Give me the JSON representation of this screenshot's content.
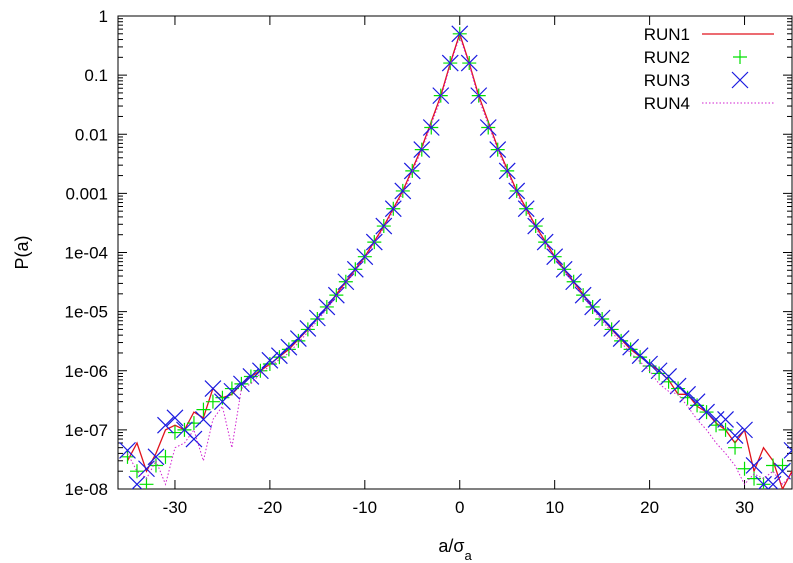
{
  "chart_data": {
    "type": "line",
    "xlabel": "a/σ",
    "xlabel_sub": "a",
    "ylabel": "P(a)",
    "xlim": [
      -36,
      35
    ],
    "ylim": [
      1e-08,
      1
    ],
    "y_scale": "log",
    "grid": false,
    "legend_position": "top-right",
    "x_ticks": [
      -30,
      -20,
      -10,
      0,
      10,
      20,
      30
    ],
    "x_tick_labels": [
      "-30",
      "-20",
      "-10",
      "0",
      "10",
      "20",
      "30"
    ],
    "y_ticks": [
      1e-08,
      1e-07,
      1e-06,
      1e-05,
      0.0001,
      0.001,
      0.01,
      0.1,
      1
    ],
    "y_tick_labels": [
      "1e-08",
      "1e-07",
      "1e-06",
      "1e-05",
      "1e-04",
      "0.001",
      "0.01",
      "0.1",
      "1"
    ],
    "series": [
      {
        "name": "RUN1",
        "style": "line",
        "color": "#e0131c",
        "x": [
          -35,
          -34,
          -33,
          -32,
          -31,
          -30,
          -29,
          -28,
          -27,
          -26,
          -25,
          -24,
          -23,
          -22,
          -21,
          -20,
          -18,
          -16,
          -14,
          -12,
          -10,
          -8,
          -6,
          -4,
          -2,
          -1,
          0,
          1,
          2,
          4,
          6,
          8,
          10,
          12,
          14,
          16,
          18,
          20,
          21,
          22,
          23,
          24,
          25,
          26,
          27,
          28,
          29,
          30,
          31,
          32,
          33,
          34,
          35
        ],
        "y": [
          3e-08,
          6e-08,
          2e-08,
          4e-08,
          1e-07,
          1.2e-07,
          1e-07,
          2e-07,
          1.6e-07,
          5e-07,
          3.5e-07,
          4e-07,
          6e-07,
          8e-07,
          1e-06,
          1.3e-06,
          2.3e-06,
          5e-06,
          1.2e-05,
          3.2e-05,
          8.5e-05,
          0.00028,
          0.0011,
          0.006,
          0.045,
          0.16,
          0.5,
          0.16,
          0.045,
          0.006,
          0.0011,
          0.00028,
          8.5e-05,
          3.2e-05,
          1.2e-05,
          5e-06,
          2.3e-06,
          1.3e-06,
          1e-06,
          7e-07,
          4e-07,
          4e-07,
          2.5e-07,
          2e-07,
          1.3e-07,
          1e-07,
          6e-08,
          1e-07,
          2e-08,
          5e-08,
          3e-08,
          1e-08,
          2e-08
        ]
      },
      {
        "name": "RUN2",
        "style": "plus",
        "color": "#00e000",
        "x": [
          -35,
          -34,
          -33,
          -32,
          -31,
          -30,
          -29,
          -28,
          -27,
          -26,
          -25,
          -24,
          -23,
          -22,
          -21,
          -20,
          -19,
          -18,
          -17,
          -16,
          -15,
          -14,
          -13,
          -12,
          -11,
          -10,
          -9,
          -8,
          -7,
          -6,
          -5,
          -4,
          -3,
          -2,
          -1,
          0,
          1,
          2,
          3,
          4,
          5,
          6,
          7,
          8,
          9,
          10,
          11,
          12,
          13,
          14,
          15,
          16,
          17,
          18,
          19,
          20,
          21,
          22,
          23,
          24,
          25,
          26,
          27,
          28,
          29,
          30,
          31,
          32,
          33,
          34
        ],
        "y": [
          3.5e-08,
          2e-08,
          1.2e-08,
          2.5e-08,
          3.5e-08,
          9e-08,
          1e-07,
          1.3e-07,
          2.2e-07,
          3e-07,
          3.5e-07,
          5e-07,
          6e-07,
          8e-07,
          1e-06,
          1.3e-06,
          1.7e-06,
          2.3e-06,
          3.2e-06,
          5e-06,
          7.5e-06,
          1.2e-05,
          1.9e-05,
          3.2e-05,
          5.2e-05,
          8.5e-05,
          0.00015,
          0.00028,
          0.00055,
          0.0011,
          0.0024,
          0.0055,
          0.013,
          0.045,
          0.16,
          0.5,
          0.16,
          0.045,
          0.013,
          0.0055,
          0.0024,
          0.0011,
          0.00055,
          0.00028,
          0.00015,
          8.5e-05,
          5.2e-05,
          3.2e-05,
          1.9e-05,
          1.2e-05,
          7.5e-06,
          5e-06,
          3.2e-06,
          2.3e-06,
          1.7e-06,
          1.2e-06,
          9e-07,
          6.5e-07,
          5e-07,
          3.5e-07,
          2.6e-07,
          2e-07,
          1.2e-07,
          1e-07,
          5e-08,
          2.2e-08,
          1.5e-08,
          1.2e-08,
          2.5e-08,
          2.5e-08
        ]
      },
      {
        "name": "RUN3",
        "style": "cross",
        "color": "#1a1ae0",
        "x": [
          -35,
          -34,
          -33,
          -32,
          -31,
          -30,
          -29,
          -28,
          -27,
          -26,
          -25,
          -24,
          -23,
          -22,
          -21,
          -20,
          -19,
          -18,
          -17,
          -16,
          -15,
          -14,
          -13,
          -12,
          -11,
          -10,
          -9,
          -8,
          -7,
          -6,
          -5,
          -4,
          -3,
          -2,
          -1,
          0,
          1,
          2,
          3,
          4,
          5,
          6,
          7,
          8,
          9,
          10,
          11,
          12,
          13,
          14,
          15,
          16,
          17,
          18,
          19,
          20,
          21,
          22,
          23,
          24,
          25,
          26,
          27,
          28,
          29,
          30,
          31,
          32,
          33,
          34,
          35
        ],
        "y": [
          4.5e-08,
          1.2e-08,
          2.2e-08,
          3.5e-08,
          1.2e-07,
          1.6e-07,
          1e-07,
          7e-08,
          1.5e-07,
          5e-07,
          3e-07,
          4.5e-07,
          6e-07,
          8e-07,
          1e-06,
          1.5e-06,
          1.8e-06,
          2.5e-06,
          3.5e-06,
          5.2e-06,
          7.8e-06,
          1.2e-05,
          1.9e-05,
          3.2e-05,
          5.2e-05,
          8.5e-05,
          0.00015,
          0.00028,
          0.00055,
          0.0011,
          0.0024,
          0.0055,
          0.013,
          0.045,
          0.16,
          0.5,
          0.16,
          0.045,
          0.013,
          0.0055,
          0.0024,
          0.0011,
          0.00055,
          0.00028,
          0.00015,
          8.5e-05,
          5.2e-05,
          3.2e-05,
          1.9e-05,
          1.2e-05,
          7.8e-06,
          5.2e-06,
          3.5e-06,
          2.5e-06,
          1.8e-06,
          1.3e-06,
          1e-06,
          8e-07,
          5.5e-07,
          4e-07,
          3e-07,
          2e-07,
          1.5e-07,
          1.5e-07,
          8e-08,
          1e-07,
          2.5e-08,
          1.2e-08,
          1.2e-08,
          2e-08,
          4.5e-08
        ]
      },
      {
        "name": "RUN4",
        "style": "dotted",
        "color": "#d020d0",
        "x": [
          -35,
          -34,
          -33,
          -32,
          -31,
          -30,
          -29,
          -28,
          -27,
          -26,
          -25,
          -24,
          -23,
          -22,
          -21,
          -20,
          -18,
          -16,
          -14,
          -12,
          -10,
          -8,
          -6,
          -4,
          -2,
          -1,
          0,
          1,
          2,
          4,
          6,
          8,
          10,
          12,
          14,
          16,
          18,
          20,
          21,
          22,
          23,
          24,
          25,
          26,
          27,
          28,
          29,
          30,
          31,
          32,
          33,
          34,
          35
        ],
        "y": [
          4e-08,
          2e-08,
          1.5e-08,
          3e-08,
          1.2e-08,
          5e-08,
          6e-08,
          1e-07,
          3e-08,
          1.5e-07,
          2.5e-07,
          5e-08,
          5e-07,
          6e-07,
          9e-07,
          1.2e-06,
          2e-06,
          4.5e-06,
          1.1e-05,
          3e-05,
          8e-05,
          0.00026,
          0.001,
          0.0055,
          0.04,
          0.15,
          0.45,
          0.15,
          0.04,
          0.0055,
          0.001,
          0.00026,
          8e-05,
          3e-05,
          1.1e-05,
          4.5e-06,
          2e-06,
          1e-06,
          6e-07,
          4.5e-07,
          4e-07,
          2.5e-07,
          1.5e-07,
          1e-07,
          6e-08,
          4e-08,
          2.5e-08,
          1.2e-08,
          1.8e-08,
          1.5e-08,
          2e-08,
          1.2e-08,
          1.8e-08
        ]
      }
    ]
  }
}
